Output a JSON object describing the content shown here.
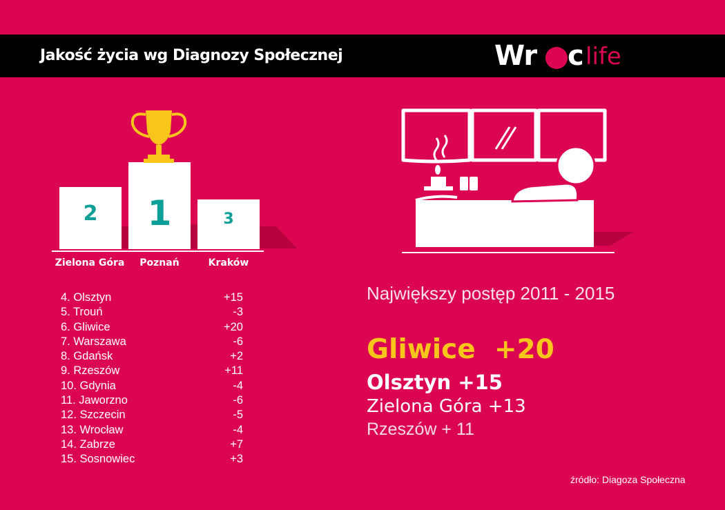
{
  "header": {
    "title": "Jakość życia wg Diagnozy Społecznej",
    "logo": {
      "part1": "Wr",
      "part2": "c",
      "part3": "life"
    }
  },
  "podium": [
    {
      "place": "2",
      "city": "Zielona Góra"
    },
    {
      "place": "1",
      "city": "Poznań"
    },
    {
      "place": "3",
      "city": "Kraków"
    }
  ],
  "ranking": [
    {
      "name": "4. Olsztyn",
      "change": "+15"
    },
    {
      "name": "5. Trouń",
      "change": "-3"
    },
    {
      "name": "6. Gliwice",
      "change": "+20"
    },
    {
      "name": "7. Warszawa",
      "change": "-6"
    },
    {
      "name": "8. Gdańsk",
      "change": "+2"
    },
    {
      "name": "9. Rzeszów",
      "change": "+11"
    },
    {
      "name": "10. Gdynia",
      "change": "-4"
    },
    {
      "name": "11. Jaworzno",
      "change": "-6"
    },
    {
      "name": "12. Szczecin",
      "change": "-5"
    },
    {
      "name": "13. Wrocław",
      "change": "-4"
    },
    {
      "name": "14. Zabrze",
      "change": "+7"
    },
    {
      "name": "15. Sosnowiec",
      "change": "+3"
    }
  ],
  "progress": {
    "title": "Największy postęp 2011 - 2015",
    "items": [
      "Gliwice  +20",
      "Olsztyn +15",
      "Zielona Góra +13",
      "Rzeszów + 11"
    ]
  },
  "source": "źródło: Diagoza Społeczna",
  "icons": {
    "trophy": "trophy-icon",
    "scene": "relaxing-person-illustration"
  },
  "colors": {
    "background": "#dc0552",
    "teal": "#0e9f98",
    "gold": "#f8c51b",
    "shadow": "#b8023f"
  }
}
